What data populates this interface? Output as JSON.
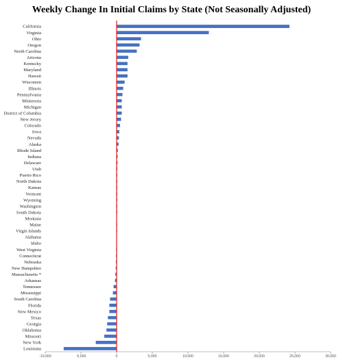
{
  "chart_data": {
    "type": "bar",
    "orientation": "horizontal",
    "title": "Weekly Change In Initial Claims by State (Not Seasonally Adjusted)",
    "xlabel": "",
    "ylabel": "",
    "xlim": [
      -10000,
      30000
    ],
    "xticks": [
      -10000,
      -5000,
      0,
      5000,
      10000,
      15000,
      20000,
      25000,
      30000
    ],
    "xtick_labels": [
      "-10,000",
      "-5,000",
      "0",
      "5,000",
      "10,000",
      "15,000",
      "20,000",
      "25,000",
      "30,000"
    ],
    "grid": false,
    "colors": {
      "bar": "#4472c4",
      "zero_line": "#e31a1c",
      "axis": "#7f7f7f"
    },
    "categories": [
      "California",
      "Virginia",
      "Ohio",
      "Oregon",
      "North Carolina",
      "Arizona",
      "Kentucky",
      "Maryland",
      "Hawaii",
      "Wisconsin",
      "Illinois",
      "Pennsylvania",
      "Minnesota",
      "Michigan",
      "District of Columbia",
      "New Jersey",
      "Colorado",
      "Iowa",
      "Nevada",
      "Alaska",
      "Rhode Island",
      "Indiana",
      "Delaware",
      "Utah",
      "Puerto Rico",
      "North Dakota",
      "Kansas",
      "Vermont",
      "Wyoming",
      "Washington",
      "South Dakota",
      "Montana",
      "Maine",
      "Virgin Islands",
      "Alabama",
      "Idaho",
      "West Virginia",
      "Connecticut",
      "Nebraska",
      "New Hampshire",
      "Massachusetts *",
      "Arkansas",
      "Tennessee",
      "Mississippi",
      "South Carolina",
      "Florida",
      "New Mexico",
      "Texas",
      "Georgia",
      "Oklahoma",
      "Missouri",
      "New York",
      "Louisiana"
    ],
    "values": [
      24200,
      12900,
      3400,
      3200,
      2800,
      1600,
      1500,
      1500,
      1500,
      1100,
      900,
      800,
      700,
      700,
      700,
      600,
      450,
      350,
      300,
      250,
      150,
      120,
      100,
      80,
      60,
      50,
      40,
      30,
      20,
      10,
      5,
      0,
      -5,
      -10,
      -30,
      -40,
      -50,
      -60,
      -80,
      -100,
      -150,
      -200,
      -400,
      -500,
      -900,
      -1000,
      -1000,
      -1200,
      -1300,
      -1400,
      -1700,
      -2900,
      -7400
    ]
  }
}
